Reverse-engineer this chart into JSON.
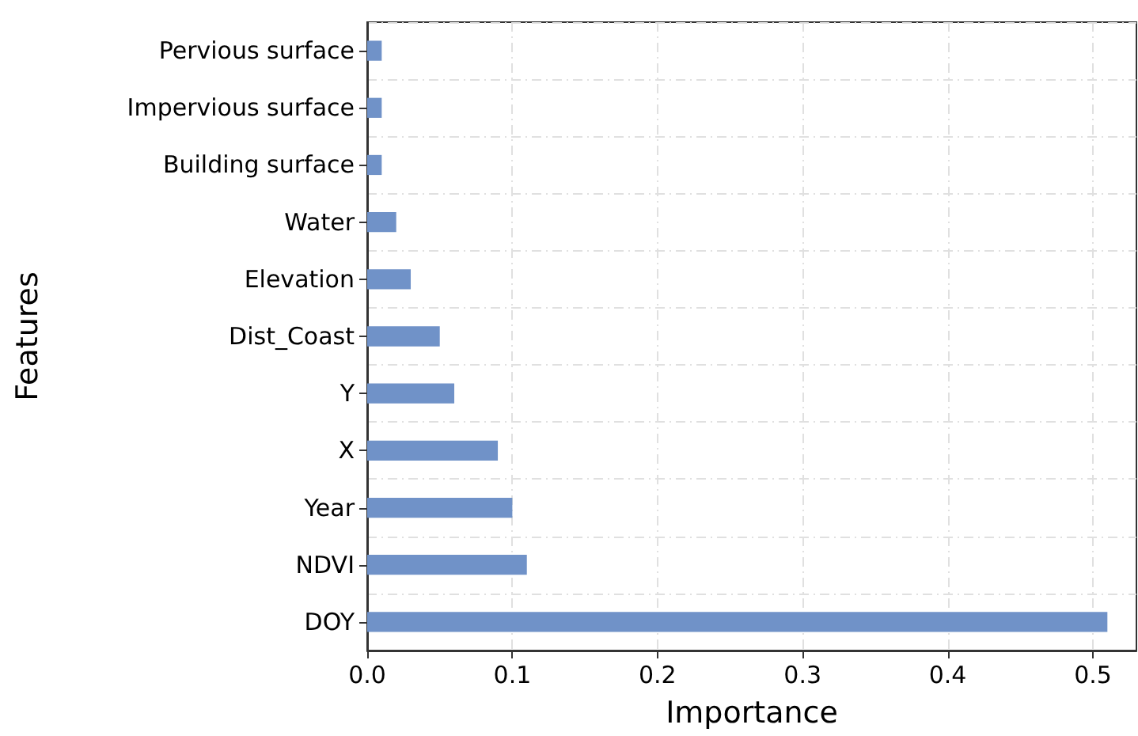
{
  "chart_data": {
    "type": "bar",
    "orientation": "horizontal",
    "xlabel": "Importance",
    "ylabel": "Features",
    "categories": [
      "Pervious surface",
      "Impervious surface",
      "Building surface",
      "Water",
      "Elevation",
      "Dist_Coast",
      "Y",
      "X",
      "Year",
      "NDVI",
      "DOY"
    ],
    "values": [
      0.01,
      0.01,
      0.01,
      0.02,
      0.03,
      0.05,
      0.06,
      0.09,
      0.1,
      0.11,
      0.51
    ],
    "color": "#7092c8",
    "xlim": [
      0,
      0.53
    ],
    "xticks": [
      {
        "value": 0,
        "label": "0.0"
      },
      0.1,
      0.2,
      0.3,
      0.4,
      0.5
    ],
    "grid": true,
    "line_style": "dashed"
  }
}
